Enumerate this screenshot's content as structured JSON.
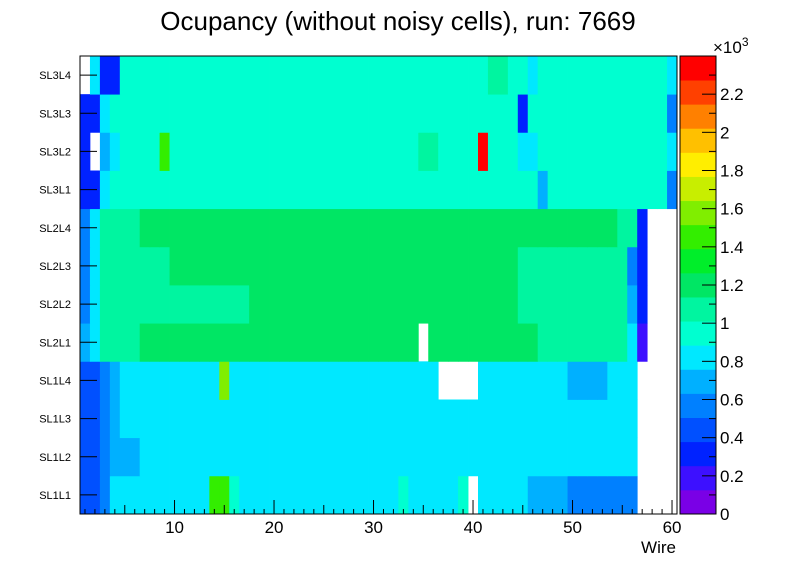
{
  "chart_data": {
    "type": "heatmap",
    "title": "Ocupancy (without noisy cells), run: 7669",
    "xlabel": "Wire",
    "ylabel": "",
    "x_range": [
      0.5,
      60.5
    ],
    "x_ticks": [
      10,
      20,
      30,
      40,
      50,
      60
    ],
    "y_categories": [
      "SL1L1",
      "SL1L2",
      "SL1L3",
      "SL1L4",
      "SL2L1",
      "SL2L2",
      "SL2L3",
      "SL2L4",
      "SL3L1",
      "SL3L2",
      "SL3L3",
      "SL3L4"
    ],
    "z_range": [
      0,
      2400
    ],
    "z_ticks": [
      0,
      200,
      400,
      600,
      800,
      1000,
      1200,
      1400,
      1600,
      1800,
      2000,
      2200
    ],
    "z_tick_labels": [
      "0",
      "0.2",
      "0.4",
      "0.6",
      "0.8",
      "1",
      "1.2",
      "1.4",
      "1.6",
      "1.8",
      "2",
      "2.2"
    ],
    "z_multiplier": "×10",
    "z_exponent": "3",
    "z_palette": [
      "#7a00e6",
      "#3d10ff",
      "#0022ff",
      "#0050ff",
      "#0080ff",
      "#00b0ff",
      "#00e8ff",
      "#00ffd0",
      "#00f5a0",
      "#00e664",
      "#00ee2a",
      "#33ee00",
      "#80ee00",
      "#c8ee00",
      "#ffee00",
      "#ffc000",
      "#ff8000",
      "#ff4000",
      "#ff0000"
    ],
    "rows": [
      [
        400,
        400,
        600,
        800,
        800,
        800,
        800,
        800,
        800,
        800,
        800,
        800,
        850,
        1450,
        1450,
        900,
        850,
        850,
        850,
        850,
        850,
        850,
        850,
        850,
        850,
        850,
        850,
        850,
        850,
        850,
        850,
        850,
        900,
        850,
        850,
        850,
        850,
        850,
        1000,
        null,
        800,
        800,
        800,
        800,
        800,
        650,
        650,
        650,
        650,
        600,
        600,
        600,
        600,
        600,
        600,
        550,
        null,
        null,
        null,
        null
      ],
      [
        400,
        400,
        600,
        700,
        700,
        650,
        800,
        800,
        800,
        800,
        800,
        800,
        800,
        800,
        800,
        800,
        850,
        850,
        850,
        850,
        850,
        850,
        850,
        850,
        850,
        850,
        850,
        850,
        850,
        850,
        850,
        850,
        850,
        850,
        850,
        850,
        850,
        850,
        850,
        850,
        850,
        850,
        850,
        850,
        850,
        850,
        850,
        800,
        800,
        800,
        800,
        800,
        800,
        800,
        800,
        800,
        null,
        null,
        null,
        null
      ],
      [
        400,
        400,
        600,
        650,
        850,
        850,
        850,
        850,
        850,
        850,
        850,
        850,
        850,
        850,
        850,
        850,
        850,
        850,
        850,
        850,
        850,
        850,
        850,
        850,
        850,
        850,
        850,
        850,
        850,
        850,
        850,
        850,
        850,
        850,
        850,
        850,
        850,
        850,
        850,
        850,
        850,
        850,
        850,
        850,
        850,
        850,
        850,
        800,
        800,
        800,
        800,
        800,
        800,
        800,
        800,
        800,
        null,
        null,
        null,
        null
      ],
      [
        400,
        400,
        600,
        650,
        850,
        850,
        800,
        850,
        850,
        850,
        850,
        850,
        850,
        850,
        1600,
        850,
        800,
        850,
        850,
        850,
        850,
        850,
        850,
        850,
        850,
        850,
        850,
        850,
        850,
        850,
        850,
        850,
        850,
        850,
        850,
        850,
        null,
        null,
        null,
        null,
        850,
        800,
        800,
        800,
        800,
        800,
        800,
        800,
        800,
        650,
        650,
        650,
        650,
        800,
        800,
        800,
        null,
        null,
        null,
        null
      ],
      [
        650,
        800,
        1050,
        1050,
        1050,
        1050,
        1150,
        1200,
        1200,
        1200,
        1200,
        1200,
        1200,
        1200,
        1200,
        1200,
        1200,
        1200,
        1200,
        1200,
        1200,
        1200,
        1200,
        1200,
        1200,
        1200,
        1200,
        1200,
        1200,
        1200,
        1200,
        1200,
        1200,
        1200,
        null,
        1200,
        1200,
        1200,
        1200,
        1200,
        1200,
        1200,
        1200,
        1200,
        1200,
        1200,
        1050,
        1050,
        1050,
        1050,
        1050,
        1050,
        1050,
        1050,
        1050,
        800,
        250,
        null,
        null,
        null
      ],
      [
        600,
        800,
        1050,
        1050,
        1050,
        1050,
        1050,
        1050,
        1050,
        1050,
        1050,
        1050,
        1050,
        1050,
        1050,
        1050,
        1050,
        1150,
        1200,
        1200,
        1200,
        1200,
        1200,
        1200,
        1200,
        1200,
        1200,
        1200,
        1200,
        1200,
        1200,
        1200,
        1200,
        1200,
        1200,
        1200,
        1200,
        1200,
        1200,
        1200,
        1200,
        1200,
        1200,
        1200,
        1050,
        1050,
        1050,
        1050,
        1050,
        1050,
        1050,
        1050,
        1050,
        1050,
        1050,
        700,
        300,
        null,
        null,
        null
      ],
      [
        600,
        850,
        1050,
        1050,
        1050,
        1050,
        1050,
        1050,
        1050,
        1150,
        1150,
        1150,
        1150,
        1150,
        1150,
        1150,
        1150,
        1150,
        1150,
        1150,
        1150,
        1150,
        1150,
        1150,
        1150,
        1150,
        1150,
        1150,
        1150,
        1150,
        1150,
        1150,
        1150,
        1150,
        1150,
        1150,
        1150,
        1150,
        1150,
        1150,
        1150,
        1150,
        1150,
        1150,
        1050,
        1050,
        1050,
        1050,
        1050,
        1050,
        1050,
        1050,
        1050,
        1050,
        1050,
        600,
        300,
        null,
        null,
        null
      ],
      [
        600,
        800,
        1050,
        1050,
        1050,
        1050,
        1150,
        1150,
        1150,
        1150,
        1150,
        1150,
        1150,
        1150,
        1150,
        1150,
        1150,
        1150,
        1150,
        1150,
        1150,
        1150,
        1150,
        1150,
        1150,
        1150,
        1150,
        1150,
        1150,
        1150,
        1150,
        1150,
        1150,
        1150,
        1150,
        1150,
        1150,
        1150,
        1150,
        1150,
        1150,
        1150,
        1150,
        1150,
        1150,
        1150,
        1250,
        1250,
        1150,
        1150,
        1150,
        1150,
        1150,
        1150,
        1050,
        1050,
        300,
        null,
        null,
        null
      ],
      [
        300,
        300,
        850,
        1000,
        1000,
        1000,
        1000,
        1000,
        1000,
        1000,
        1000,
        1000,
        1000,
        1000,
        1000,
        1000,
        1000,
        1000,
        1000,
        1000,
        1000,
        1000,
        1000,
        1000,
        1000,
        1000,
        1000,
        1000,
        1000,
        1000,
        1000,
        1000,
        1000,
        1000,
        1000,
        1000,
        1000,
        1000,
        1000,
        1000,
        1000,
        1000,
        1000,
        1000,
        1000,
        1000,
        700,
        1000,
        1000,
        1000,
        1000,
        1000,
        1000,
        1000,
        1000,
        1000,
        1000,
        1000,
        1000,
        600
      ],
      [
        300,
        null,
        650,
        850,
        1000,
        1000,
        1000,
        1000,
        1500,
        1000,
        1000,
        900,
        1000,
        1000,
        1000,
        1000,
        1000,
        1000,
        1000,
        1000,
        1000,
        1000,
        1000,
        1000,
        1000,
        1000,
        1000,
        1000,
        1000,
        1000,
        1000,
        1000,
        1000,
        1000,
        1100,
        1100,
        1000,
        1000,
        1000,
        1000,
        2350,
        1000,
        1000,
        1000,
        850,
        850,
        1000,
        1000,
        1000,
        1000,
        1000,
        1000,
        1000,
        1000,
        1000,
        1000,
        1000,
        1000,
        1000,
        800
      ],
      [
        300,
        300,
        850,
        1000,
        1000,
        1000,
        1000,
        1000,
        1000,
        1000,
        1000,
        1000,
        1000,
        1000,
        1000,
        1000,
        1000,
        1000,
        1000,
        1000,
        1000,
        1000,
        1000,
        1000,
        1000,
        1000,
        1000,
        1000,
        1000,
        1000,
        1000,
        1000,
        1000,
        1000,
        1000,
        1000,
        1000,
        1000,
        1000,
        1000,
        1000,
        1000,
        1000,
        1000,
        300,
        1000,
        1000,
        1000,
        1000,
        1000,
        1000,
        1000,
        1000,
        1000,
        1000,
        1000,
        1000,
        1000,
        1000,
        600
      ],
      [
        null,
        800,
        300,
        300,
        1000,
        1000,
        1000,
        1000,
        1000,
        1000,
        1000,
        1000,
        1000,
        1000,
        1000,
        1000,
        1000,
        1000,
        1000,
        1000,
        1000,
        1000,
        1000,
        1000,
        1000,
        1000,
        1000,
        1000,
        1000,
        1000,
        1000,
        1000,
        1000,
        1000,
        1000,
        1000,
        1000,
        1000,
        1000,
        1000,
        1000,
        1100,
        1100,
        1000,
        1000,
        800,
        1000,
        1000,
        1000,
        1000,
        1000,
        1000,
        1000,
        1000,
        1000,
        1000,
        1000,
        1000,
        1000,
        800
      ]
    ]
  }
}
